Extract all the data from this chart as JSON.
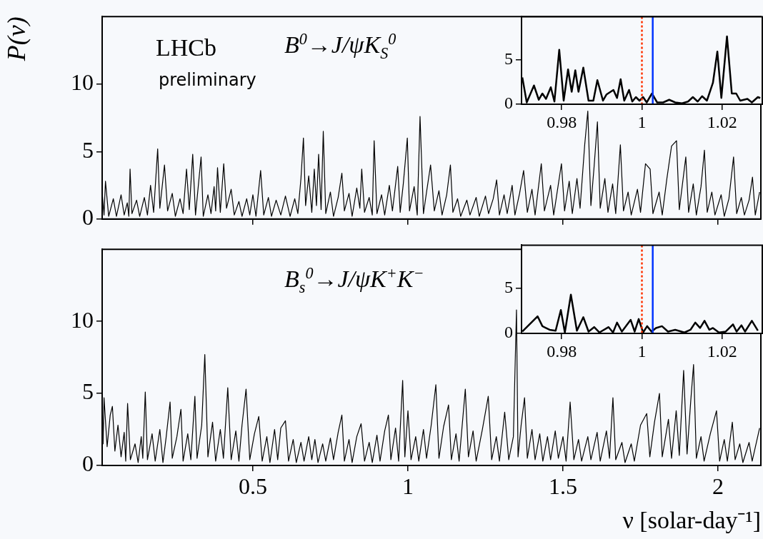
{
  "chart_data": [
    {
      "type": "line",
      "ylabel": "P(ν)",
      "annotations": [
        "LHCb",
        "preliminary",
        "B$^{0}$→J/ψK$_{S}$$^{0}$"
      ],
      "xlim": [
        0.014,
        2.138
      ],
      "ylim": [
        0,
        15
      ],
      "yticks": [
        0,
        5,
        10
      ],
      "xticks": [
        0.5,
        1,
        1.5,
        2
      ],
      "tick_labels": "y",
      "x": [
        0.014,
        0.02,
        0.0247,
        0.035,
        0.05,
        0.06,
        0.075,
        0.085,
        0.095,
        0.1,
        0.104,
        0.11,
        0.125,
        0.135,
        0.15,
        0.16,
        0.17,
        0.18,
        0.193,
        0.2,
        0.215,
        0.225,
        0.24,
        0.25,
        0.265,
        0.275,
        0.286,
        0.295,
        0.306,
        0.315,
        0.333,
        0.34,
        0.355,
        0.365,
        0.375,
        0.38,
        0.386,
        0.395,
        0.406,
        0.415,
        0.43,
        0.44,
        0.455,
        0.465,
        0.48,
        0.49,
        0.5,
        0.51,
        0.525,
        0.535,
        0.55,
        0.56,
        0.575,
        0.59,
        0.605,
        0.62,
        0.635,
        0.645,
        0.655,
        0.663,
        0.67,
        0.68,
        0.69,
        0.698,
        0.705,
        0.712,
        0.72,
        0.727,
        0.735,
        0.75,
        0.76,
        0.775,
        0.787,
        0.795,
        0.81,
        0.82,
        0.835,
        0.845,
        0.851,
        0.86,
        0.875,
        0.885,
        0.891,
        0.9,
        0.915,
        0.925,
        0.94,
        0.95,
        0.967,
        0.975,
        0.985,
        0.998,
        1.005,
        1.02,
        1.03,
        1.039,
        1.05,
        1.06,
        1.073,
        1.085,
        1.1,
        1.11,
        1.125,
        1.137,
        1.145,
        1.16,
        1.17,
        1.19,
        1.2,
        1.22,
        1.23,
        1.25,
        1.26,
        1.275,
        1.286,
        1.295,
        1.31,
        1.32,
        1.336,
        1.345,
        1.36,
        1.373,
        1.385,
        1.4,
        1.41,
        1.43,
        1.44,
        1.46,
        1.47,
        1.495,
        1.505,
        1.52,
        1.53,
        1.545,
        1.555,
        1.57,
        1.58,
        1.59,
        1.6,
        1.611,
        1.62,
        1.635,
        1.645,
        1.66,
        1.67,
        1.685,
        1.695,
        1.71,
        1.72,
        1.74,
        1.75,
        1.766,
        1.781,
        1.79,
        1.81,
        1.82,
        1.835,
        1.85,
        1.866,
        1.875,
        1.896,
        1.905,
        1.92,
        1.93,
        1.945,
        1.956,
        1.965,
        1.98,
        1.99,
        2.01,
        2.02,
        2.035,
        2.05,
        2.06,
        2.075,
        2.085,
        2.1,
        2.111,
        2.12,
        2.134
      ],
      "series": [
        {
          "color": "#000000",
          "values": [
            2.0,
            0.3,
            2.8,
            0.2,
            1.5,
            0.2,
            1.8,
            0.3,
            1.2,
            0.2,
            3.7,
            0.4,
            1.4,
            0.2,
            1.6,
            0.3,
            2.5,
            0.5,
            5.2,
            0.8,
            4.0,
            0.6,
            1.9,
            0.2,
            1.5,
            0.4,
            3.7,
            0.7,
            4.8,
            0.3,
            4.6,
            0.2,
            1.8,
            0.4,
            2.4,
            0.6,
            3.8,
            0.5,
            4.1,
            0.8,
            2.2,
            0.3,
            1.3,
            0.2,
            1.5,
            0.3,
            1.8,
            0.2,
            3.6,
            0.3,
            1.6,
            0.2,
            1.4,
            0.3,
            1.7,
            0.2,
            1.5,
            0.4,
            3.0,
            6.0,
            1.0,
            3.2,
            0.5,
            3.7,
            1.0,
            4.8,
            0.7,
            6.5,
            0.4,
            2.0,
            0.2,
            1.6,
            3.4,
            0.6,
            1.9,
            0.2,
            2.3,
            0.8,
            3.7,
            0.5,
            1.6,
            0.3,
            5.8,
            0.4,
            1.8,
            0.3,
            2.5,
            0.6,
            3.9,
            0.5,
            2.6,
            6.0,
            0.6,
            2.4,
            0.3,
            7.6,
            0.4,
            2.0,
            4.0,
            0.6,
            2.1,
            0.3,
            1.8,
            4.0,
            0.5,
            1.5,
            0.2,
            1.4,
            0.3,
            1.6,
            0.2,
            1.7,
            0.4,
            1.5,
            2.9,
            0.3,
            1.8,
            0.4,
            2.5,
            0.3,
            1.9,
            3.6,
            0.5,
            2.2,
            0.3,
            4.1,
            0.6,
            2.5,
            0.3,
            4.1,
            0.6,
            2.8,
            0.4,
            3.0,
            0.8,
            5.5,
            8.0,
            1.0,
            3.8,
            7.2,
            0.8,
            3.0,
            0.5,
            2.6,
            0.4,
            5.5,
            0.6,
            2.0,
            0.3,
            2.2,
            0.5,
            4.1,
            3.7,
            0.4,
            2.0,
            0.3,
            3.0,
            5.4,
            5.8,
            0.7,
            4.6,
            0.5,
            2.6,
            0.3,
            2.4,
            5.1,
            0.5,
            2.0,
            0.3,
            1.8,
            0.2,
            1.5,
            4.6,
            0.4,
            1.6,
            0.3,
            1.4,
            3.1,
            0.3,
            2.0
          ]
        }
      ]
    },
    {
      "type": "line",
      "xlim": [
        0.97,
        1.03
      ],
      "ylim": [
        0,
        9.8
      ],
      "xticks": [
        0.98,
        1,
        1.02
      ],
      "yticks": [
        0,
        5
      ],
      "ref_lines": [
        {
          "axis": "x",
          "value": 1,
          "color": "#ff3300",
          "line_style": "dotted"
        },
        {
          "axis": "x",
          "value": 1.0027,
          "color": "#0033ff",
          "line_style": "solid"
        }
      ],
      "x": [
        0.9702,
        0.9713,
        0.9731,
        0.9743,
        0.9752,
        0.9761,
        0.9773,
        0.9782,
        0.9794,
        0.9805,
        0.9816,
        0.9825,
        0.9834,
        0.9842,
        0.9854,
        0.9867,
        0.9879,
        0.9889,
        0.9903,
        0.9912,
        0.9929,
        0.9938,
        0.9947,
        0.9956,
        0.9968,
        0.9976,
        0.9985,
        0.9994,
        1.0003,
        1.0012,
        1.0025,
        1.0038,
        1.0053,
        1.0068,
        1.0083,
        1.01,
        1.0115,
        1.0127,
        1.0139,
        1.015,
        1.0162,
        1.0177,
        1.0188,
        1.0198,
        1.0212,
        1.0224,
        1.0235,
        1.0245,
        1.0263,
        1.0274,
        1.0289,
        1.0295
      ],
      "series": [
        {
          "color": "#000000",
          "values": [
            3.0,
            0.2,
            2.1,
            0.5,
            1.2,
            0.6,
            1.9,
            0.3,
            6.1,
            0.4,
            3.9,
            1.4,
            3.8,
            1.4,
            4.1,
            0.4,
            0.4,
            2.7,
            0.4,
            1.1,
            1.6,
            0.7,
            2.8,
            0.4,
            1.6,
            0.3,
            0.8,
            0.4,
            0.8,
            0.2,
            1.2,
            0.2,
            0.2,
            0.5,
            0.2,
            0.1,
            0.3,
            0.8,
            0.3,
            0.9,
            0.4,
            2.4,
            5.9,
            0.7,
            7.6,
            1.2,
            1.2,
            0.4,
            0.6,
            0.2,
            0.8,
            0.7
          ]
        }
      ]
    },
    {
      "type": "line",
      "xlabel": "ν [solar-day⁻¹]",
      "annotations": [
        "B$_{s}$$^{0}$→J/ψK$^{+}$K$^{−}$"
      ],
      "xlim": [
        0.014,
        2.138
      ],
      "ylim": [
        0,
        15
      ],
      "yticks": [
        0,
        5,
        10
      ],
      "xticks": [
        0.5,
        1,
        1.5,
        2
      ],
      "x": [
        0.014,
        0.017,
        0.02,
        0.03,
        0.04,
        0.047,
        0.055,
        0.065,
        0.075,
        0.085,
        0.09,
        0.096,
        0.105,
        0.12,
        0.13,
        0.14,
        0.145,
        0.153,
        0.16,
        0.175,
        0.185,
        0.2,
        0.21,
        0.22,
        0.233,
        0.24,
        0.255,
        0.268,
        0.275,
        0.29,
        0.3,
        0.313,
        0.32,
        0.335,
        0.345,
        0.355,
        0.37,
        0.38,
        0.395,
        0.405,
        0.419,
        0.43,
        0.445,
        0.455,
        0.465,
        0.478,
        0.49,
        0.505,
        0.519,
        0.53,
        0.545,
        0.555,
        0.57,
        0.58,
        0.59,
        0.605,
        0.615,
        0.63,
        0.64,
        0.655,
        0.665,
        0.68,
        0.69,
        0.7,
        0.71,
        0.725,
        0.735,
        0.75,
        0.76,
        0.775,
        0.787,
        0.795,
        0.81,
        0.82,
        0.835,
        0.849,
        0.86,
        0.875,
        0.885,
        0.9,
        0.91,
        0.925,
        0.937,
        0.945,
        0.96,
        0.97,
        0.983,
        0.99,
        1.0,
        1.01,
        1.025,
        1.035,
        1.05,
        1.06,
        1.075,
        1.09,
        1.1,
        1.115,
        1.131,
        1.14,
        1.155,
        1.165,
        1.185,
        1.195,
        1.21,
        1.22,
        1.24,
        1.259,
        1.27,
        1.285,
        1.295,
        1.312,
        1.325,
        1.34,
        1.35,
        1.355,
        1.365,
        1.376,
        1.385,
        1.4,
        1.41,
        1.425,
        1.435,
        1.45,
        1.46,
        1.475,
        1.485,
        1.5,
        1.51,
        1.523,
        1.535,
        1.55,
        1.56,
        1.58,
        1.59,
        1.61,
        1.62,
        1.64,
        1.65,
        1.661,
        1.67,
        1.69,
        1.7,
        1.72,
        1.73,
        1.75,
        1.77,
        1.78,
        1.795,
        1.811,
        1.82,
        1.84,
        1.85,
        1.865,
        1.875,
        1.889,
        1.9,
        1.912,
        1.921,
        1.93,
        1.945,
        1.955,
        1.975,
        1.995,
        2.005,
        2.02,
        2.03,
        2.046,
        2.055,
        2.07,
        2.08,
        2.1,
        2.11,
        2.134
      ],
      "series": [
        {
          "color": "#000000",
          "values": [
            4.5,
            1.5,
            4.7,
            1.3,
            3.5,
            4.1,
            1.0,
            2.8,
            0.6,
            2.3,
            0.3,
            4.3,
            0.4,
            1.5,
            0.2,
            2.0,
            0.5,
            5.1,
            0.4,
            2.2,
            0.3,
            2.5,
            0.2,
            1.9,
            4.4,
            0.5,
            2.0,
            3.9,
            0.3,
            2.2,
            0.4,
            4.8,
            0.5,
            2.8,
            7.7,
            0.6,
            3.0,
            0.3,
            2.5,
            0.5,
            5.4,
            0.4,
            2.4,
            0.3,
            2.8,
            5.3,
            0.4,
            2.2,
            3.4,
            0.3,
            2.0,
            0.2,
            2.5,
            0.4,
            2.6,
            3.1,
            0.3,
            1.8,
            0.2,
            1.6,
            0.3,
            2.0,
            0.4,
            1.8,
            0.2,
            1.5,
            0.3,
            1.9,
            0.4,
            2.3,
            3.5,
            0.3,
            1.8,
            0.2,
            2.0,
            2.9,
            0.3,
            1.6,
            0.2,
            2.1,
            0.3,
            2.4,
            3.5,
            0.4,
            2.6,
            0.3,
            5.9,
            0.6,
            3.8,
            0.4,
            2.0,
            0.3,
            2.5,
            0.5,
            2.8,
            5.6,
            0.5,
            2.7,
            4.2,
            0.4,
            2.2,
            0.3,
            5.3,
            0.6,
            2.4,
            0.3,
            2.5,
            4.8,
            0.4,
            2.0,
            0.3,
            3.7,
            0.4,
            2.0,
            10.8,
            0.6,
            2.8,
            4.7,
            0.5,
            2.5,
            0.4,
            2.2,
            0.3,
            2.0,
            0.4,
            2.4,
            0.5,
            2.0,
            0.3,
            4.4,
            0.4,
            1.8,
            0.3,
            2.0,
            0.4,
            2.3,
            0.3,
            2.4,
            0.5,
            4.7,
            0.4,
            1.6,
            0.2,
            1.5,
            0.3,
            2.8,
            3.6,
            0.6,
            3.0,
            5.0,
            0.6,
            3.2,
            0.5,
            3.8,
            0.7,
            6.6,
            0.8,
            4.5,
            7.0,
            0.5,
            2.0,
            0.3,
            2.2,
            3.8,
            0.3,
            1.8,
            0.3,
            3.0,
            0.4,
            1.5,
            0.2,
            1.6,
            0.3,
            2.6
          ]
        }
      ]
    },
    {
      "type": "line",
      "xlim": [
        0.97,
        1.03
      ],
      "ylim": [
        0,
        9.8
      ],
      "xticks": [
        0.98,
        1,
        1.02
      ],
      "yticks": [
        0,
        5
      ],
      "ref_lines": [
        {
          "axis": "x",
          "value": 1,
          "color": "#ff3300",
          "line_style": "dotted"
        },
        {
          "axis": "x",
          "value": 1.0027,
          "color": "#0033ff",
          "line_style": "solid"
        }
      ],
      "x": [
        0.9702,
        0.974,
        0.9752,
        0.977,
        0.9785,
        0.9798,
        0.9808,
        0.9823,
        0.9838,
        0.9854,
        0.9867,
        0.9881,
        0.9894,
        0.9917,
        0.9928,
        0.9938,
        0.995,
        0.9972,
        0.9982,
        0.9992,
        1.0003,
        1.0013,
        1.0024,
        1.0035,
        1.005,
        1.0065,
        1.0083,
        1.0106,
        1.0121,
        1.0133,
        1.0145,
        1.0156,
        1.0168,
        1.0177,
        1.0192,
        1.0209,
        1.0227,
        1.0236,
        1.0248,
        1.0257,
        1.0274,
        1.0289
      ],
      "series": [
        {
          "color": "#000000",
          "values": [
            0.2,
            1.9,
            0.8,
            0.4,
            0.3,
            2.6,
            0.1,
            4.3,
            0.3,
            1.8,
            0.2,
            0.7,
            0.1,
            0.7,
            0.1,
            1.2,
            0.2,
            1.5,
            0.2,
            1.6,
            0.1,
            0.8,
            0.2,
            0.6,
            0.8,
            0.2,
            0.4,
            0.1,
            0.4,
            1.2,
            0.6,
            1.4,
            0.4,
            0.6,
            0.1,
            0.2,
            1.0,
            0.2,
            0.9,
            0.2,
            1.4,
            0.3
          ]
        }
      ]
    }
  ]
}
